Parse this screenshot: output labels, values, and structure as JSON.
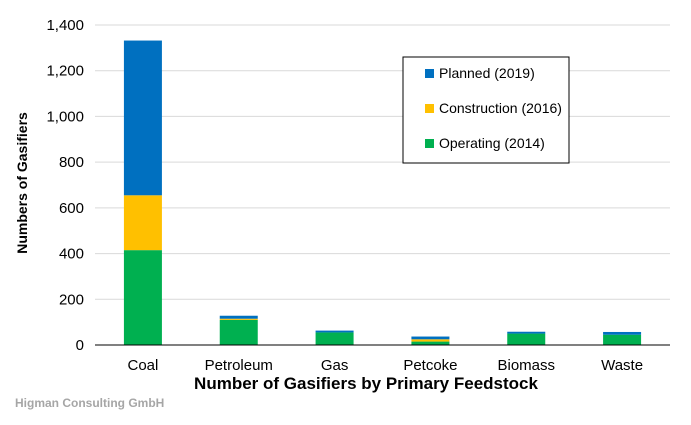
{
  "chart_data": {
    "type": "bar",
    "stacked": true,
    "categories": [
      "Coal",
      "Petroleum",
      "Gas",
      "Petcoke",
      "Biomass",
      "Waste"
    ],
    "series": [
      {
        "name": "Operating (2014)",
        "color": "#00b050",
        "values": [
          415,
          110,
          55,
          15,
          50,
          45
        ]
      },
      {
        "name": "Construction (2016)",
        "color": "#ffc000",
        "values": [
          240,
          5,
          0,
          10,
          0,
          0
        ]
      },
      {
        "name": "Planned (2019)",
        "color": "#0070c0",
        "values": [
          677,
          13,
          8,
          12,
          8,
          12
        ]
      }
    ],
    "legend_order": [
      "Planned (2019)",
      "Construction (2016)",
      "Operating (2014)"
    ],
    "xlabel": "Number of Gasifiers by Primary Feedstock",
    "ylabel": "Numbers of Gasifiers",
    "ylim": [
      0,
      1400
    ],
    "yticks": [
      0,
      200,
      400,
      600,
      800,
      1000,
      1200,
      1400
    ],
    "ytick_labels": [
      "0",
      "200",
      "400",
      "600",
      "800",
      "1,000",
      "1,200",
      "1,400"
    ],
    "grid": true,
    "legend_position": "top-right"
  },
  "credit": "Higman Consulting GmbH"
}
